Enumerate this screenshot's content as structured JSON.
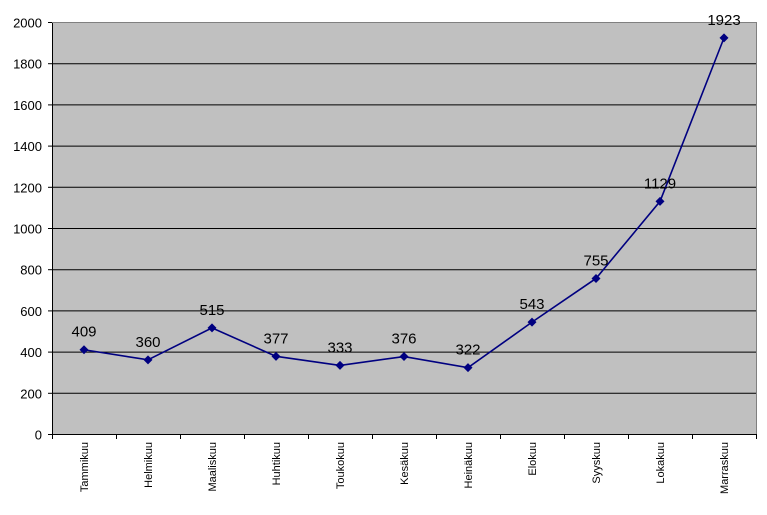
{
  "chart_data": {
    "type": "line",
    "title": "",
    "xlabel": "",
    "ylabel": "",
    "categories": [
      "Tammikuu",
      "Helmikuu",
      "Maaliskuu",
      "Huhtikuu",
      "Toukokuu",
      "Kesäkuu",
      "Heinäkuu",
      "Elokuu",
      "Syyskuu",
      "Lokakuu",
      "Marraskuu"
    ],
    "series": [
      {
        "values": [
          409,
          360,
          515,
          377,
          333,
          376,
          322,
          543,
          755,
          1129,
          1923
        ]
      }
    ],
    "ylim": [
      0,
      2000
    ],
    "yticks": [
      0,
      200,
      400,
      600,
      800,
      1000,
      1200,
      1400,
      1600,
      1800,
      2000
    ],
    "grid": true,
    "data_labels": true,
    "marker": "diamond",
    "colors": {
      "plot_background": "#c0c0c0",
      "line": "#000080",
      "gridline": "#000000"
    }
  }
}
